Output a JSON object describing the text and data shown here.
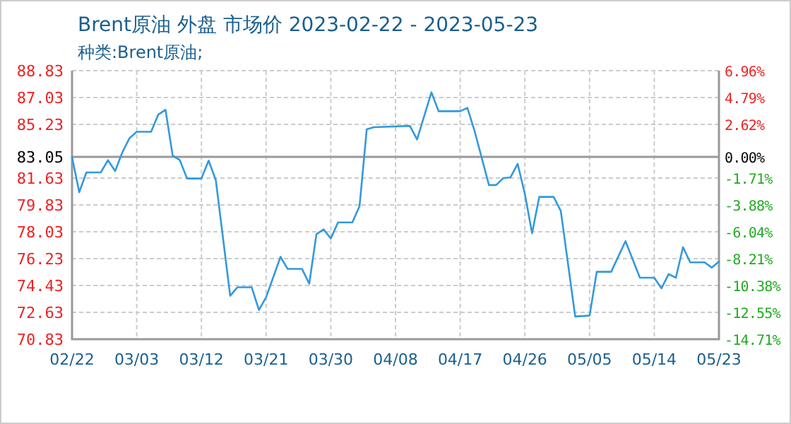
{
  "chart_data": {
    "type": "line",
    "title": "Brent原油 外盘 市场价 2023-02-22 - 2023-05-23",
    "subtitle": "种类:Brent原油;",
    "x": [
      "2023-02-22",
      "2023-02-23",
      "2023-02-24",
      "2023-02-26",
      "2023-02-27",
      "2023-02-28",
      "2023-03-01",
      "2023-03-02",
      "2023-03-03",
      "2023-03-05",
      "2023-03-06",
      "2023-03-07",
      "2023-03-08",
      "2023-03-09",
      "2023-03-10",
      "2023-03-12",
      "2023-03-13",
      "2023-03-14",
      "2023-03-16",
      "2023-03-17",
      "2023-03-19",
      "2023-03-20",
      "2023-03-21",
      "2023-03-23",
      "2023-03-24",
      "2023-03-26",
      "2023-03-27",
      "2023-03-28",
      "2023-03-29",
      "2023-03-30",
      "2023-03-31",
      "2023-04-02",
      "2023-04-03",
      "2023-04-04",
      "2023-04-05",
      "2023-04-10",
      "2023-04-11",
      "2023-04-13",
      "2023-04-14",
      "2023-04-17",
      "2023-04-18",
      "2023-04-19",
      "2023-04-21",
      "2023-04-22",
      "2023-04-23",
      "2023-04-24",
      "2023-04-25",
      "2023-04-26",
      "2023-04-27",
      "2023-04-28",
      "2023-04-30",
      "2023-05-01",
      "2023-05-03",
      "2023-05-05",
      "2023-05-06",
      "2023-05-08",
      "2023-05-10",
      "2023-05-12",
      "2023-05-14",
      "2023-05-15",
      "2023-05-16",
      "2023-05-17",
      "2023-05-18",
      "2023-05-19",
      "2023-05-21",
      "2023-05-22",
      "2023-05-23"
    ],
    "series": [
      {
        "color": "#3399dd",
        "values": [
          83.05,
          80.68,
          82.01,
          82.01,
          82.83,
          82.1,
          83.36,
          84.31,
          84.73,
          84.73,
          85.89,
          86.21,
          83.14,
          82.83,
          81.6,
          81.6,
          82.8,
          81.5,
          73.74,
          74.31,
          74.31,
          72.79,
          73.64,
          76.35,
          75.54,
          75.54,
          74.55,
          77.87,
          78.19,
          77.58,
          78.66,
          78.66,
          79.76,
          84.9,
          85.04,
          85.13,
          84.22,
          87.38,
          86.11,
          86.11,
          86.34,
          84.79,
          81.16,
          81.16,
          81.63,
          81.68,
          82.58,
          80.56,
          77.93,
          80.37,
          80.37,
          79.42,
          72.35,
          72.41,
          75.35,
          75.35,
          77.4,
          74.95,
          74.95,
          74.24,
          75.19,
          74.95,
          77.0,
          75.98,
          75.98,
          75.63,
          76.04
        ]
      }
    ],
    "xlim": [
      "2023-02-22",
      "2023-05-23"
    ],
    "xticks": [
      {
        "value": "2023-02-22",
        "label": "02/22"
      },
      {
        "value": "2023-03-03",
        "label": "03/03"
      },
      {
        "value": "2023-03-12",
        "label": "03/12"
      },
      {
        "value": "2023-03-21",
        "label": "03/21"
      },
      {
        "value": "2023-03-30",
        "label": "03/30"
      },
      {
        "value": "2023-04-08",
        "label": "04/08"
      },
      {
        "value": "2023-04-17",
        "label": "04/17"
      },
      {
        "value": "2023-04-26",
        "label": "04/26"
      },
      {
        "value": "2023-05-05",
        "label": "05/05"
      },
      {
        "value": "2023-05-14",
        "label": "05/14"
      },
      {
        "value": "2023-05-23",
        "label": "05/23"
      }
    ],
    "ylim": [
      70.83,
      88.83
    ],
    "yticks": [
      88.83,
      87.03,
      85.23,
      83.05,
      81.63,
      79.83,
      78.03,
      76.23,
      74.43,
      72.63,
      70.83
    ],
    "y2lim": [
      -14.71,
      6.96
    ],
    "y2ticks": [
      {
        "value": 6.96,
        "label": "6.96%"
      },
      {
        "value": 4.79,
        "label": "4.79%"
      },
      {
        "value": 2.62,
        "label": "2.62%"
      },
      {
        "value": 0,
        "label": "0.00%"
      },
      {
        "value": -1.71,
        "label": "-1.71%"
      },
      {
        "value": -3.88,
        "label": "-3.88%"
      },
      {
        "value": -6.04,
        "label": "-6.04%"
      },
      {
        "value": -8.21,
        "label": "-8.21%"
      },
      {
        "value": -10.38,
        "label": "-10.38%"
      },
      {
        "value": -12.55,
        "label": "-12.55%"
      },
      {
        "value": -14.71,
        "label": "-14.71%"
      }
    ],
    "ref_lines": [
      {
        "axis": "y",
        "value": 83.05,
        "color": "#999999"
      }
    ],
    "grid": true,
    "marker": "none",
    "line_style": "solid"
  }
}
